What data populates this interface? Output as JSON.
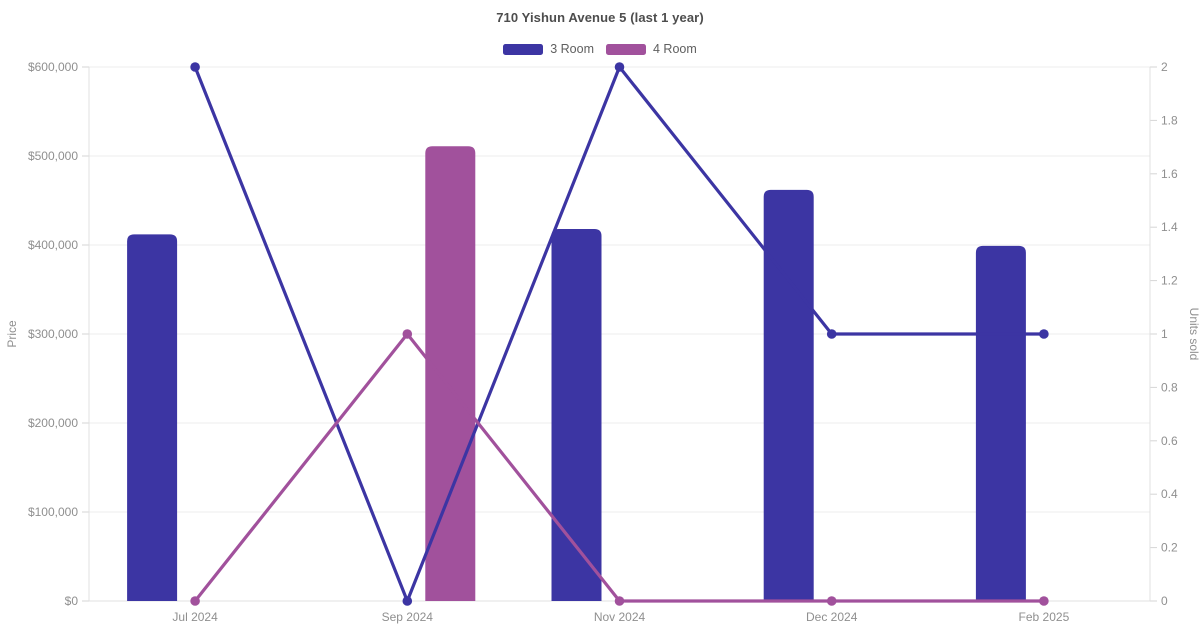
{
  "chart_data": {
    "type": "bar+line combo",
    "title": "710 Yishun Avenue 5 (last 1 year)",
    "categories": [
      "Jul 2024",
      "Sep 2024",
      "Nov 2024",
      "Dec 2024",
      "Feb 2025"
    ],
    "series": [
      {
        "name": "3 Room",
        "color": "#3C35A3",
        "avg_price_bars": [
          412000,
          null,
          418000,
          462000,
          399000
        ],
        "units_sold_line": [
          2,
          0,
          2,
          1,
          1
        ]
      },
      {
        "name": "4 Room",
        "color": "#A1519C",
        "avg_price_bars": [
          null,
          511000,
          null,
          null,
          null
        ],
        "units_sold_line": [
          0,
          1,
          0,
          0,
          0
        ]
      }
    ],
    "left_axis": {
      "title": "Price",
      "min": 0,
      "max": 600000,
      "tick_labels": [
        "$0",
        "$100,000",
        "$200,000",
        "$300,000",
        "$400,000",
        "$500,000",
        "$600,000"
      ]
    },
    "right_axis": {
      "title": "Units sold",
      "min": 0,
      "max": 2,
      "tick_labels": [
        "0",
        "0.2",
        "0.4",
        "0.6",
        "0.8",
        "1",
        "1.2",
        "1.4",
        "1.6",
        "1.8",
        "2"
      ]
    },
    "legend_position": "top-center",
    "grid": "horizontal gridlines only",
    "background": "#ffffff"
  }
}
